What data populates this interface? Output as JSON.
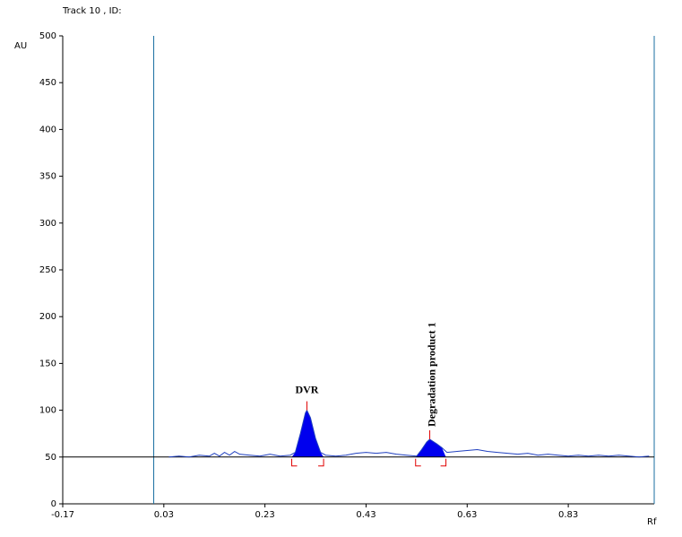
{
  "chart_data": {
    "type": "line",
    "title": "Track  10 , ID:",
    "y_label": "AU",
    "x_label": "Rf",
    "xlim": [
      -0.17,
      1.0
    ],
    "xticks": [
      -0.17,
      0.03,
      0.23,
      0.43,
      0.63,
      0.83
    ],
    "ylim": [
      0,
      500
    ],
    "yticks": [
      0,
      50,
      100,
      150,
      200,
      250,
      300,
      350,
      400,
      450,
      500
    ],
    "baseline": 50,
    "markers": [
      0.01,
      1.0
    ],
    "series": [
      {
        "name": "Track 10",
        "color": "#1f3fbf",
        "x": [
          0.04,
          0.06,
          0.08,
          0.1,
          0.12,
          0.13,
          0.14,
          0.15,
          0.16,
          0.17,
          0.18,
          0.2,
          0.22,
          0.24,
          0.26,
          0.28,
          0.29,
          0.3,
          0.31,
          0.313,
          0.32,
          0.33,
          0.34,
          0.35,
          0.37,
          0.39,
          0.41,
          0.43,
          0.45,
          0.47,
          0.49,
          0.51,
          0.53,
          0.54,
          0.55,
          0.556,
          0.57,
          0.58,
          0.59,
          0.61,
          0.63,
          0.65,
          0.67,
          0.69,
          0.71,
          0.73,
          0.75,
          0.77,
          0.79,
          0.81,
          0.83,
          0.85,
          0.87,
          0.89,
          0.91,
          0.93,
          0.95,
          0.97,
          0.99
        ],
        "values": [
          50,
          51,
          50,
          52,
          51,
          54,
          51,
          55,
          52,
          56,
          53,
          52,
          51,
          53,
          51,
          52,
          55,
          75,
          97,
          100,
          92,
          70,
          55,
          52,
          51,
          52,
          54,
          55,
          54,
          55,
          53,
          52,
          51,
          58,
          66,
          69,
          64,
          60,
          55,
          56,
          57,
          58,
          56,
          55,
          54,
          53,
          54,
          52,
          53,
          52,
          51,
          52,
          51,
          52,
          51,
          52,
          51,
          50,
          51
        ]
      }
    ],
    "peaks": [
      {
        "label": "DVR",
        "start": 0.283,
        "apex": 0.313,
        "end": 0.346,
        "fill": "#0000ee",
        "bracket": "#e00000"
      },
      {
        "label": "Degradation product 1",
        "start": 0.528,
        "apex": 0.556,
        "end": 0.588,
        "fill": "#0000ee",
        "bracket": "#e00000"
      }
    ]
  }
}
